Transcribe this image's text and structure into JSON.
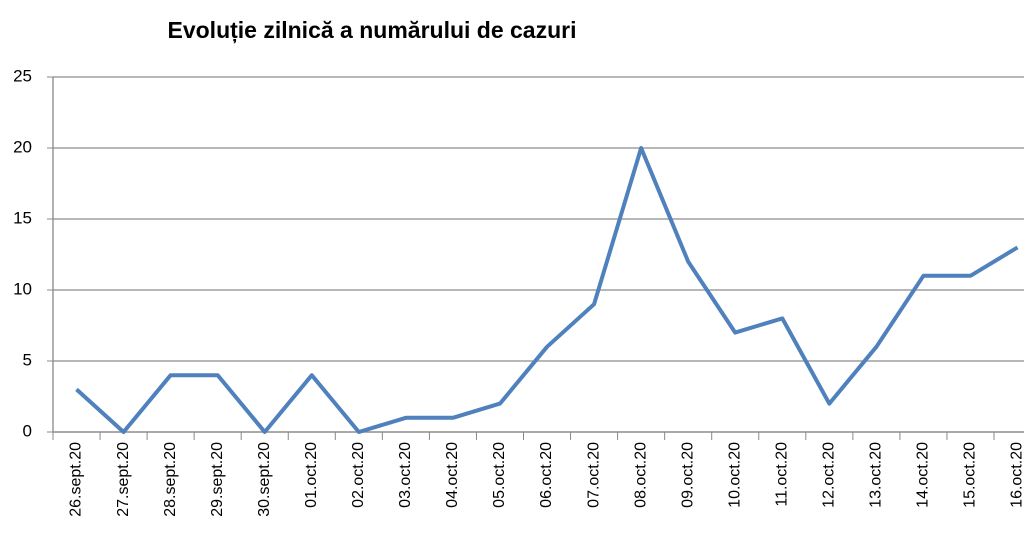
{
  "chart_data": {
    "type": "line",
    "title": "Evoluție zilnică a numărului de cazuri",
    "categories": [
      "26.sept.20",
      "27.sept.20",
      "28.sept.20",
      "29.sept.20",
      "30.sept.20",
      "01.oct.20",
      "02.oct.20",
      "03.oct.20",
      "04.oct.20",
      "05.oct.20",
      "06.oct.20",
      "07.oct.20",
      "08.oct.20",
      "09.oct.20",
      "10.oct.20",
      "11.oct.20",
      "12.oct.20",
      "13.oct.20",
      "14.oct.20",
      "15.oct.20",
      "16.oct.20"
    ],
    "values": [
      3,
      0,
      4,
      4,
      0,
      4,
      0,
      1,
      1,
      2,
      6,
      9,
      20,
      12,
      7,
      8,
      2,
      6,
      11,
      11,
      13
    ],
    "color": "#4f81bd",
    "ylim": [
      0,
      25
    ],
    "yticks": [
      0,
      5,
      10,
      15,
      20,
      25
    ],
    "grid": true
  }
}
